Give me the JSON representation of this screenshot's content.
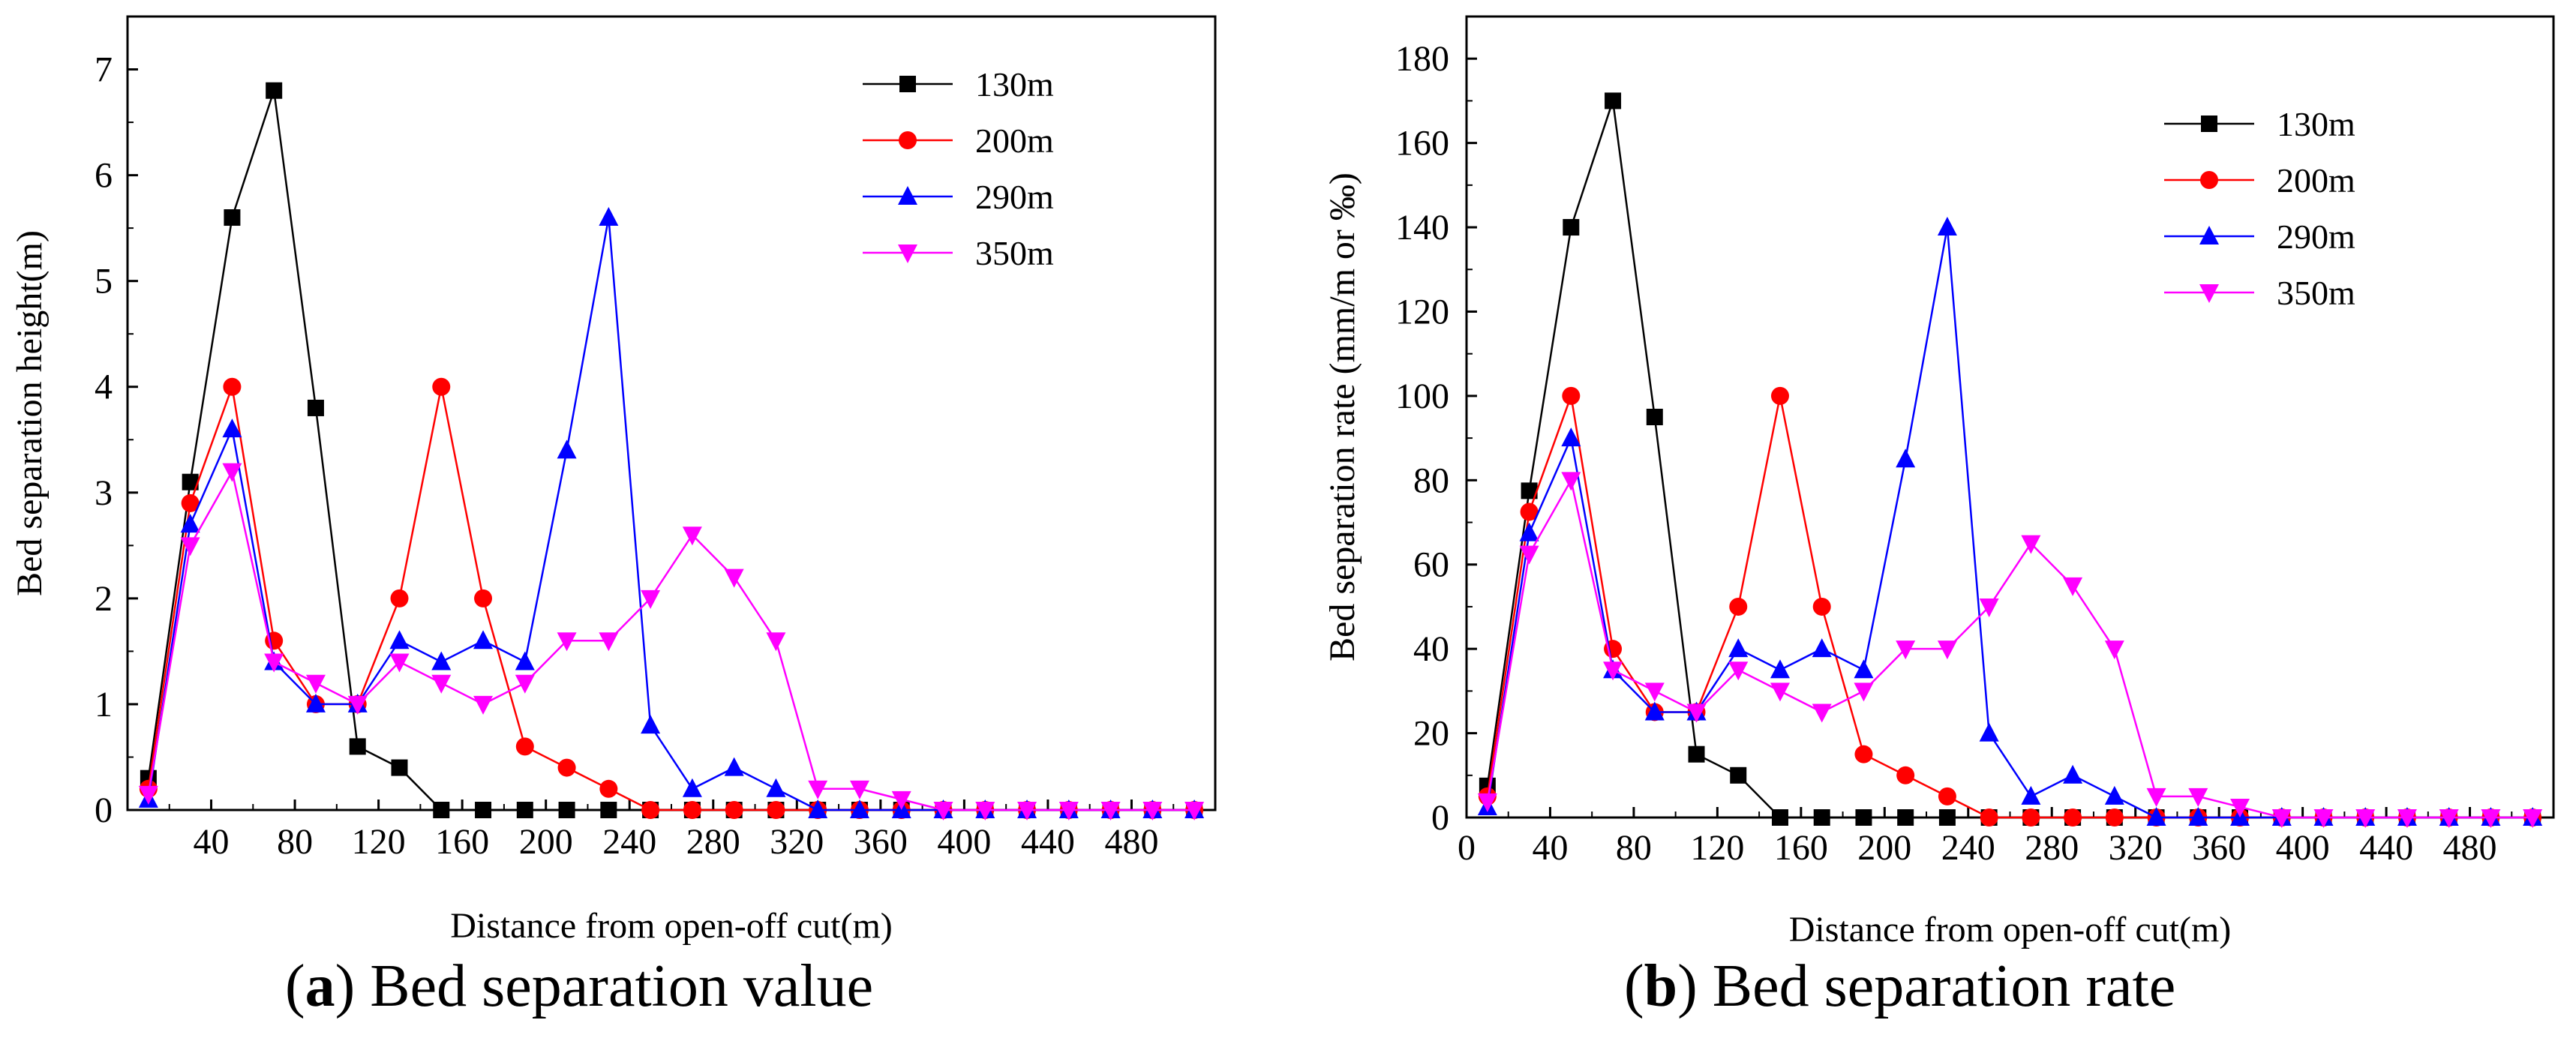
{
  "colors": {
    "130m": "#000000",
    "200m": "#ff0000",
    "290m": "#0000ff",
    "350m": "#ff00ff"
  },
  "chart_data": [
    {
      "type": "line",
      "caption_letter": "a",
      "caption_text": " Bed separation value",
      "xlabel": "Distance from open-off cut(m)",
      "ylabel": "Bed separation height(m)",
      "xlim": [
        0,
        520
      ],
      "ylim": [
        0,
        7.5
      ],
      "xticks": [
        40,
        80,
        120,
        160,
        200,
        240,
        280,
        320,
        360,
        400,
        440,
        480
      ],
      "yticks": [
        0,
        1,
        2,
        3,
        4,
        5,
        6,
        7
      ],
      "x": [
        10,
        30,
        50,
        70,
        90,
        110,
        130,
        150,
        170,
        190,
        210,
        230,
        250,
        270,
        290,
        310,
        330,
        350,
        370,
        390,
        410,
        430,
        450,
        470,
        490,
        510
      ],
      "series": [
        {
          "name": "130m",
          "marker": "square",
          "values": [
            0.3,
            3.1,
            5.6,
            6.8,
            3.8,
            0.6,
            0.4,
            0,
            0,
            0,
            0,
            0,
            0,
            0,
            0,
            0,
            0,
            0,
            0,
            0,
            0,
            0,
            0,
            0,
            0,
            0
          ]
        },
        {
          "name": "200m",
          "marker": "circle",
          "values": [
            0.2,
            2.9,
            4.0,
            1.6,
            1.0,
            1.0,
            2.0,
            4.0,
            2.0,
            0.6,
            0.4,
            0.2,
            0,
            0,
            0,
            0,
            0,
            0,
            0,
            0,
            0,
            0,
            0,
            0,
            0,
            0
          ]
        },
        {
          "name": "290m",
          "marker": "triangle-up",
          "values": [
            0.1,
            2.7,
            3.6,
            1.4,
            1.0,
            1.0,
            1.6,
            1.4,
            1.6,
            1.4,
            3.4,
            5.6,
            0.8,
            0.2,
            0.4,
            0.2,
            0,
            0,
            0,
            0,
            0,
            0,
            0,
            0,
            0,
            0
          ]
        },
        {
          "name": "350m",
          "marker": "triangle-down",
          "values": [
            0.15,
            2.5,
            3.2,
            1.4,
            1.2,
            1.0,
            1.4,
            1.2,
            1.0,
            1.2,
            1.6,
            1.6,
            2.0,
            2.6,
            2.2,
            1.6,
            0.2,
            0.2,
            0.1,
            0,
            0,
            0,
            0,
            0,
            0,
            0
          ]
        }
      ]
    },
    {
      "type": "line",
      "caption_letter": "b",
      "caption_text": " Bed separation rate",
      "xlabel": "Distance from open-off cut(m)",
      "ylabel": "Bed separation rate (mm/m or ‰)",
      "xlim": [
        0,
        520
      ],
      "ylim": [
        0,
        190
      ],
      "xticks": [
        0,
        40,
        80,
        120,
        160,
        200,
        240,
        280,
        320,
        360,
        400,
        440,
        480
      ],
      "yticks": [
        0,
        20,
        40,
        60,
        80,
        100,
        120,
        140,
        160,
        180
      ],
      "x": [
        10,
        30,
        50,
        70,
        90,
        110,
        130,
        150,
        170,
        190,
        210,
        230,
        250,
        270,
        290,
        310,
        330,
        350,
        370,
        390,
        410,
        430,
        450,
        470,
        490,
        510
      ],
      "series": [
        {
          "name": "130m",
          "marker": "square",
          "values": [
            7.5,
            77.5,
            140,
            170,
            95,
            15,
            10,
            0,
            0,
            0,
            0,
            0,
            0,
            0,
            0,
            0,
            0,
            0,
            0,
            0,
            0,
            0,
            0,
            0,
            0,
            0
          ]
        },
        {
          "name": "200m",
          "marker": "circle",
          "values": [
            5,
            72.5,
            100,
            40,
            25,
            25,
            50,
            100,
            50,
            15,
            10,
            5,
            0,
            0,
            0,
            0,
            0,
            0,
            0,
            0,
            0,
            0,
            0,
            0,
            0,
            0
          ]
        },
        {
          "name": "290m",
          "marker": "triangle-up",
          "values": [
            2.5,
            67.5,
            90,
            35,
            25,
            25,
            40,
            35,
            40,
            35,
            85,
            140,
            20,
            5,
            10,
            5,
            0,
            0,
            0,
            0,
            0,
            0,
            0,
            0,
            0,
            0
          ]
        },
        {
          "name": "350m",
          "marker": "triangle-down",
          "values": [
            3.75,
            62.5,
            80,
            35,
            30,
            25,
            35,
            30,
            25,
            30,
            40,
            40,
            50,
            65,
            55,
            40,
            5,
            5,
            2.5,
            0,
            0,
            0,
            0,
            0,
            0,
            0
          ]
        }
      ]
    }
  ]
}
